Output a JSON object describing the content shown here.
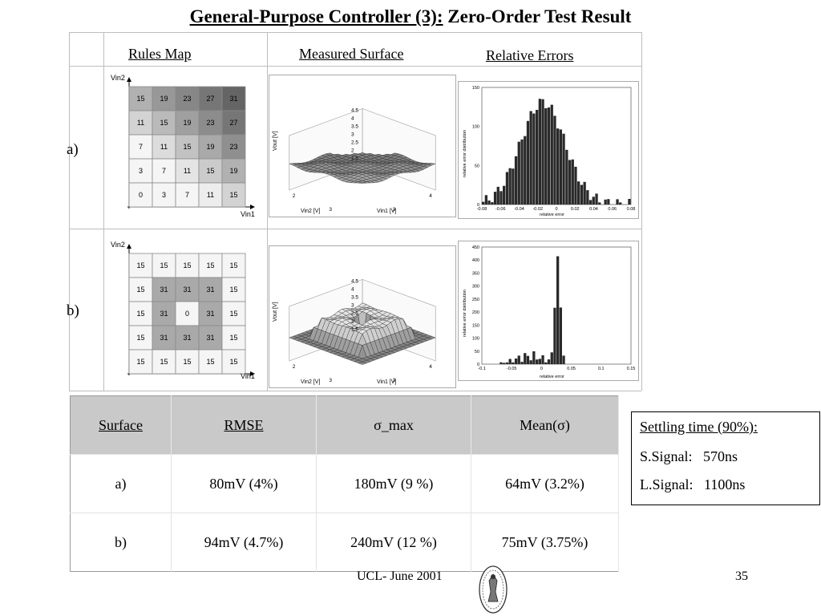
{
  "title": {
    "part1": "General-Purpose Controller (3):",
    "part2": "Zero-Order Test Result"
  },
  "columns": {
    "rules_map": "Rules Map",
    "measured_surface": "Measured Surface",
    "relative_errors": "Relative Errors"
  },
  "rows": [
    {
      "label": "a)",
      "rules_grid": [
        [
          "15",
          "19",
          "23",
          "27",
          "31"
        ],
        [
          "11",
          "15",
          "19",
          "23",
          "27"
        ],
        [
          "7",
          "11",
          "15",
          "19",
          "23"
        ],
        [
          "3",
          "7",
          "11",
          "15",
          "19"
        ],
        [
          "0",
          "3",
          "7",
          "11",
          "15"
        ]
      ],
      "rules_shades": [
        [
          0.4,
          0.55,
          0.65,
          0.75,
          0.85
        ],
        [
          0.2,
          0.35,
          0.5,
          0.62,
          0.75
        ],
        [
          0.0,
          0.15,
          0.3,
          0.45,
          0.6
        ],
        [
          0.0,
          0.0,
          0.1,
          0.25,
          0.4
        ],
        [
          0.0,
          0.0,
          0.0,
          0.05,
          0.2
        ]
      ],
      "surface": {
        "zlabel": "Vout [V]",
        "xlabel": "Vin1 [V]",
        "ylabel": "Vin2 [V]",
        "z_ticks": [
          "4.5",
          "4",
          "3.5",
          "3",
          "2.5",
          "2",
          "1.5"
        ],
        "x_ticks": [
          "2",
          "3",
          "4"
        ],
        "y_ticks": [
          "4",
          "3",
          "2"
        ]
      },
      "histogram": {
        "ylabel": "relative error distribution",
        "xlabel": "relative error",
        "y_ticks": [
          "150",
          "100",
          "50",
          "0"
        ],
        "x_ticks": [
          "-0.08",
          "-0.06",
          "-0.04",
          "-0.02",
          "0",
          "0.02",
          "0.04",
          "0.06",
          "0.08"
        ]
      }
    },
    {
      "label": "b)",
      "rules_grid": [
        [
          "15",
          "15",
          "15",
          "15",
          "15"
        ],
        [
          "15",
          "31",
          "31",
          "31",
          "15"
        ],
        [
          "15",
          "31",
          "0",
          "31",
          "15"
        ],
        [
          "15",
          "31",
          "31",
          "31",
          "15"
        ],
        [
          "15",
          "15",
          "15",
          "15",
          "15"
        ]
      ],
      "rules_shades": [
        [
          0,
          0,
          0,
          0,
          0
        ],
        [
          0,
          0.45,
          0.45,
          0.45,
          0
        ],
        [
          0,
          0.45,
          0,
          0.45,
          0
        ],
        [
          0,
          0.45,
          0.45,
          0.45,
          0
        ],
        [
          0,
          0,
          0,
          0,
          0
        ]
      ],
      "surface": {
        "zlabel": "Vout [V]",
        "xlabel": "Vin1 [V]",
        "ylabel": "Vin2 [V]",
        "z_ticks": [
          "4.5",
          "4",
          "3.5",
          "3",
          "2.5",
          "2",
          "1.5"
        ],
        "x_ticks": [
          "2",
          "3",
          "4"
        ],
        "y_ticks": [
          "4",
          "3",
          "2"
        ]
      },
      "histogram": {
        "ylabel": "relative error distribution",
        "xlabel": "relative error",
        "y_ticks": [
          "450",
          "400",
          "350",
          "300",
          "250",
          "200",
          "150",
          "100",
          "50",
          "0"
        ],
        "x_ticks": [
          "-0.1",
          "-0.05",
          "0",
          "0.05",
          "0.1",
          "0.15"
        ]
      }
    }
  ],
  "axis": {
    "vin1": "Vin1",
    "vin2": "Vin2"
  },
  "table": {
    "headers": [
      "Surface",
      "RMSE",
      "σ_max",
      "Mean(σ)"
    ],
    "rows": [
      [
        "a)",
        "80mV (4%)",
        "180mV (9 %)",
        "64mV (3.2%)"
      ],
      [
        "b)",
        "94mV (4.7%)",
        "240mV (12 %)",
        "75mV (3.75%)"
      ]
    ]
  },
  "settling": {
    "title": "Settling time (90%):",
    "s_label": "S.Signal:",
    "s_value": "570ns",
    "l_label": "L.Signal:",
    "l_value": "1100ns"
  },
  "footer": "UCL- June 2001",
  "page_number": "35",
  "logo": "ucl-seal-icon",
  "colors": {
    "grid_line": "#999999",
    "header_bg": "#c9c9c9",
    "bar": "#2a2a2a"
  }
}
